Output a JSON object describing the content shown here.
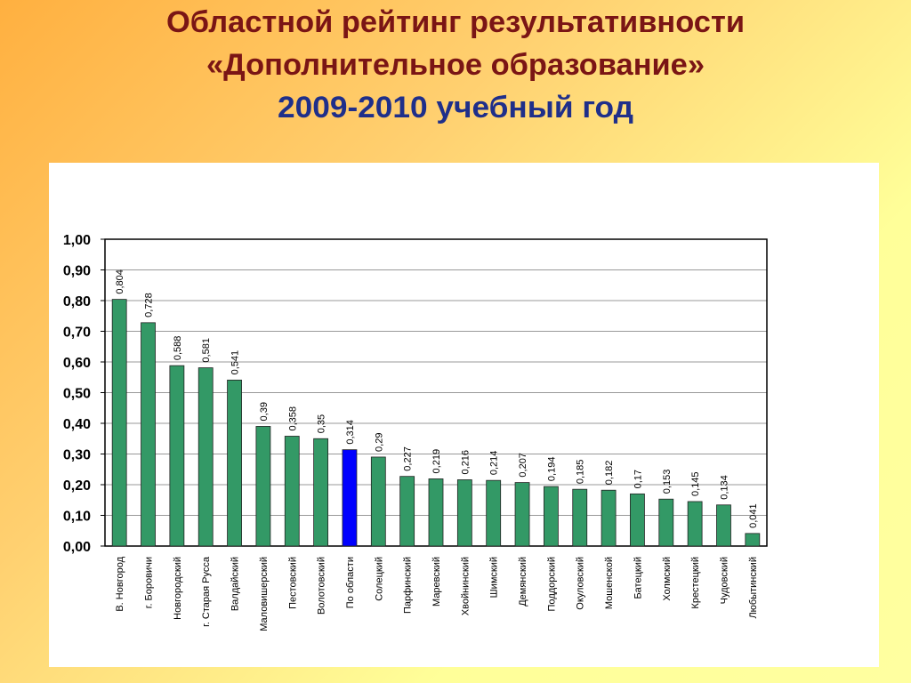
{
  "chart_data": {
    "type": "bar",
    "title": [
      "Областной рейтинг результативности",
      "«Дополнительное образование»",
      "2009-2010 учебный год"
    ],
    "categories": [
      "В. Новгород",
      "г. Боровичи",
      "Новгородский",
      "г. Старая Русса",
      "Валдайский",
      "Маловишерский",
      "Пестовский",
      "Волотовский",
      "По области",
      "Солецкий",
      "Парфинский",
      "Маревский",
      "Хвойнинский",
      "Шимский",
      "Демянский",
      "Поддорский",
      "Окуловский",
      "Мошенской",
      "Батецкий",
      "Холмский",
      "Крестецкий",
      "Чудовский",
      "Любытинский"
    ],
    "values": [
      0.804,
      0.728,
      0.588,
      0.581,
      0.541,
      0.39,
      0.358,
      0.35,
      0.314,
      0.29,
      0.227,
      0.219,
      0.216,
      0.214,
      0.207,
      0.194,
      0.185,
      0.182,
      0.17,
      0.153,
      0.145,
      0.134,
      0.041
    ],
    "value_labels": [
      "0,804",
      "0,728",
      "0,588",
      "0,581",
      "0,541",
      "0,39",
      "0,358",
      "0,35",
      "0,314",
      "0,29",
      "0,227",
      "0,219",
      "0,216",
      "0,214",
      "0,207",
      "0,194",
      "0,185",
      "0,182",
      "0,17",
      "0,153",
      "0,145",
      "0,134",
      "0,041"
    ],
    "colors": [
      "#339966",
      "#339966",
      "#339966",
      "#339966",
      "#339966",
      "#339966",
      "#339966",
      "#339966",
      "#0000ff",
      "#339966",
      "#339966",
      "#339966",
      "#339966",
      "#339966",
      "#339966",
      "#339966",
      "#339966",
      "#339966",
      "#339966",
      "#339966",
      "#339966",
      "#339966",
      "#339966"
    ],
    "ylim": [
      0,
      1
    ],
    "yticks": [
      {
        "value": 0,
        "label": "0,00"
      },
      {
        "value": 0.1,
        "label": "0,10"
      },
      {
        "value": 0.2,
        "label": "0,20"
      },
      {
        "value": 0.3,
        "label": "0,30"
      },
      {
        "value": 0.4,
        "label": "0,40"
      },
      {
        "value": 0.5,
        "label": "0,50"
      },
      {
        "value": 0.6,
        "label": "0,60"
      },
      {
        "value": 0.7,
        "label": "0,70"
      },
      {
        "value": 0.8,
        "label": "0,80"
      },
      {
        "value": 0.9,
        "label": "0,90"
      },
      {
        "value": 1,
        "label": "1,00"
      }
    ],
    "grid": true
  }
}
